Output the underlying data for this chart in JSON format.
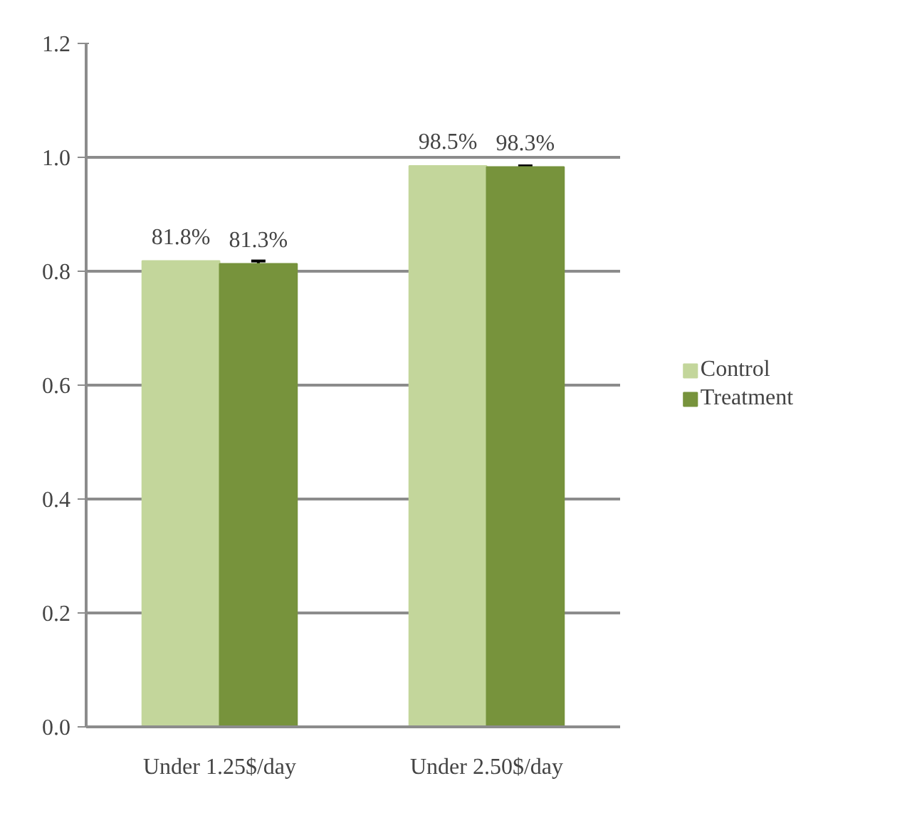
{
  "chart_data": {
    "type": "bar",
    "categories": [
      "Under 1.25$/day",
      "Under 2.50$/day"
    ],
    "series": [
      {
        "name": "Control",
        "color": "#c3d69b",
        "values": [
          0.818,
          0.985
        ],
        "value_labels": [
          "81.8%",
          "98.5%"
        ]
      },
      {
        "name": "Treatment",
        "color": "#77933c",
        "values": [
          0.813,
          0.983
        ],
        "value_labels": [
          "81.3%",
          "98.3%"
        ],
        "errors": [
          0.005,
          0.002
        ]
      }
    ],
    "ylim": [
      0,
      1.2
    ],
    "yticks": [
      {
        "value": 0,
        "label": "0.0"
      },
      {
        "value": 0.2,
        "label": "0.2"
      },
      {
        "value": 0.4,
        "label": "0.4"
      },
      {
        "value": 0.6,
        "label": "0.6"
      },
      {
        "value": 0.8,
        "label": "0.8"
      },
      {
        "value": 1.0,
        "label": "1.0"
      },
      {
        "value": 1.2,
        "label": "1.2"
      }
    ],
    "grid": "y",
    "legend": "right"
  }
}
